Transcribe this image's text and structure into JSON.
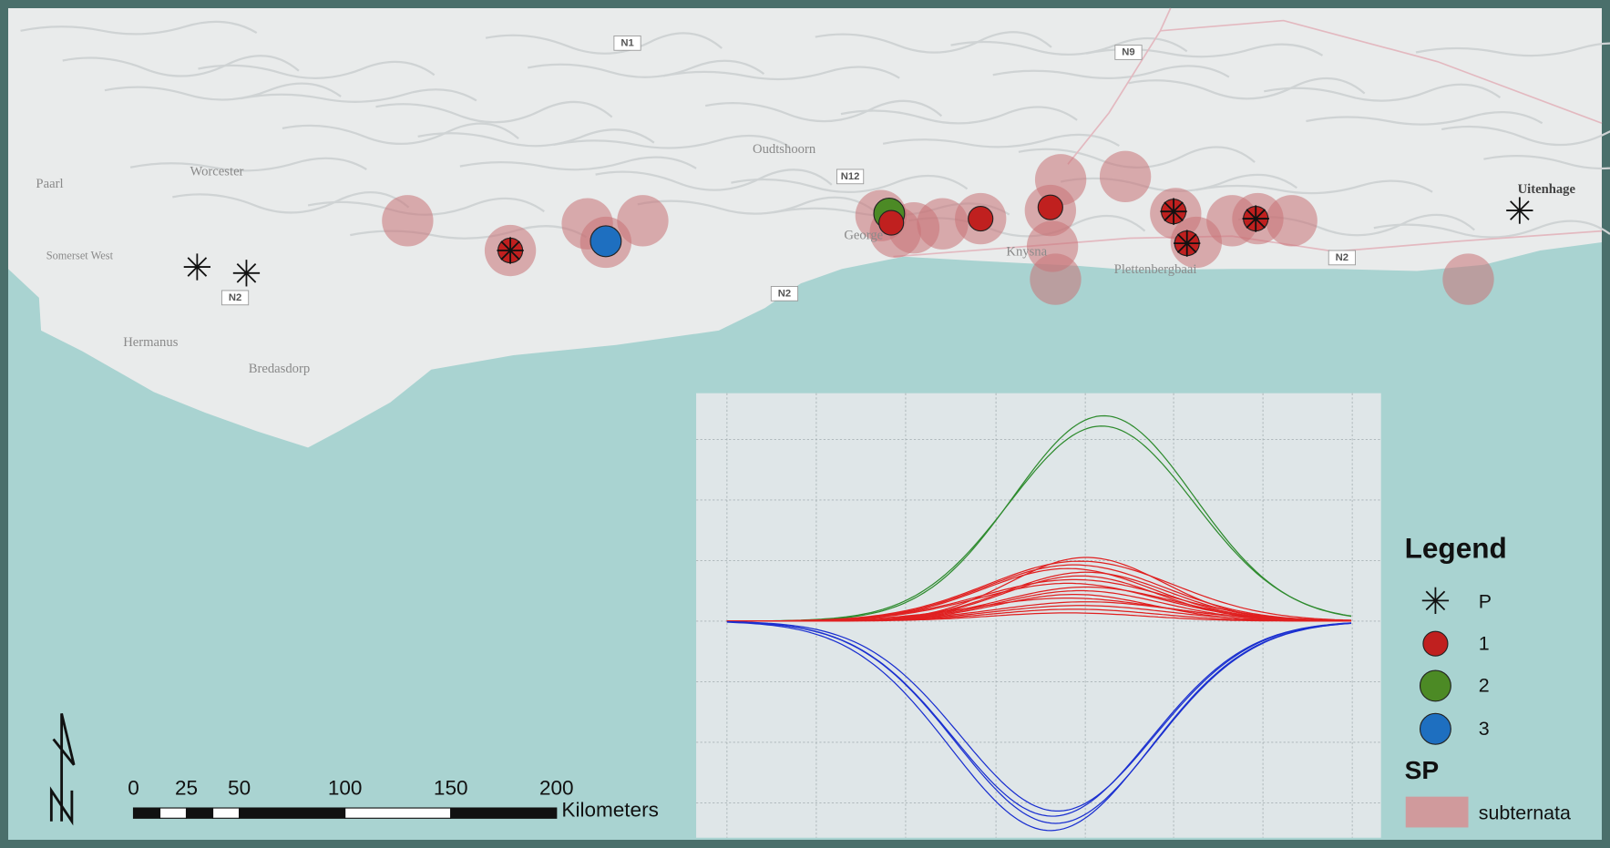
{
  "map": {
    "places": [
      "Paarl",
      "Worcester",
      "Somerset West",
      "Hermanus",
      "Bredasdorp",
      "Oudtshoorn",
      "George",
      "Knysna",
      "Plettenbergbaai",
      "Uitenhage"
    ],
    "roads": [
      "N1",
      "N9",
      "N12",
      "N2",
      "N2",
      "N2"
    ]
  },
  "legend": {
    "title": "Legend",
    "items": [
      "P",
      "1",
      "2",
      "3"
    ],
    "group": "SP",
    "group_item": "subternata"
  },
  "scale_bar": {
    "ticks": [
      0,
      25,
      50,
      100,
      150,
      200
    ],
    "unit": "Kilometers"
  }
}
